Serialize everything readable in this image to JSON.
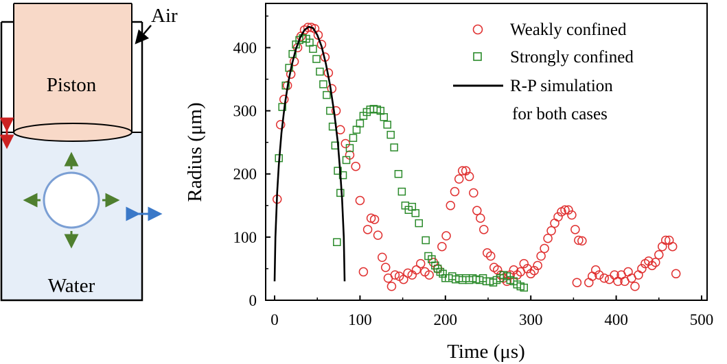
{
  "schematic": {
    "labels": {
      "air": "Air",
      "piston": "Piston",
      "water": "Water"
    },
    "colors": {
      "piston_fill": "#f8d9c8",
      "water_fill": "#e6eef8",
      "bubble_stroke": "#7b9fd4",
      "bubble_arrows": "#4f7f2f",
      "piston_arrow": "#cc2222",
      "wall_arrow": "#3a78c8"
    }
  },
  "chart_data": {
    "type": "scatter",
    "xlabel": "Time (μs)",
    "ylabel": "Radius (μm)",
    "xlim": [
      0,
      500
    ],
    "ylim": [
      0,
      470
    ],
    "xticks": [
      0,
      100,
      200,
      300,
      400,
      500
    ],
    "yticks": [
      0,
      100,
      200,
      300,
      400
    ],
    "legend_position": "top-right",
    "series": [
      {
        "name": "Weakly confined",
        "marker": "circle",
        "color": "#e03030",
        "points": [
          [
            3,
            160
          ],
          [
            7,
            278
          ],
          [
            11,
            318
          ],
          [
            15,
            340
          ],
          [
            19,
            358
          ],
          [
            23,
            378
          ],
          [
            27,
            400
          ],
          [
            31,
            418
          ],
          [
            35,
            428
          ],
          [
            39,
            432
          ],
          [
            43,
            432
          ],
          [
            47,
            430
          ],
          [
            51,
            420
          ],
          [
            55,
            405
          ],
          [
            59,
            385
          ],
          [
            63,
            360
          ],
          [
            67,
            335
          ],
          [
            72,
            300
          ],
          [
            77,
            270
          ],
          [
            83,
            248
          ],
          [
            88,
            230
          ],
          [
            95,
            212
          ],
          [
            100,
            158
          ],
          [
            104,
            45
          ],
          [
            109,
            112
          ],
          [
            113,
            130
          ],
          [
            117,
            128
          ],
          [
            121,
            103
          ],
          [
            126,
            68
          ],
          [
            130,
            52
          ],
          [
            133,
            35
          ],
          [
            137,
            22
          ],
          [
            141,
            40
          ],
          [
            146,
            38
          ],
          [
            151,
            33
          ],
          [
            156,
            43
          ],
          [
            161,
            40
          ],
          [
            166,
            48
          ],
          [
            171,
            58
          ],
          [
            176,
            45
          ],
          [
            181,
            40
          ],
          [
            186,
            60
          ],
          [
            191,
            50
          ],
          [
            196,
            85
          ],
          [
            201,
            102
          ],
          [
            206,
            150
          ],
          [
            211,
            172
          ],
          [
            216,
            192
          ],
          [
            220,
            205
          ],
          [
            224,
            205
          ],
          [
            228,
            196
          ],
          [
            233,
            170
          ],
          [
            237,
            142
          ],
          [
            241,
            130
          ],
          [
            245,
            112
          ],
          [
            249,
            75
          ],
          [
            253,
            70
          ],
          [
            257,
            52
          ],
          [
            261,
            48
          ],
          [
            265,
            40
          ],
          [
            268,
            35
          ],
          [
            272,
            30
          ],
          [
            276,
            40
          ],
          [
            280,
            48
          ],
          [
            284,
            40
          ],
          [
            288,
            45
          ],
          [
            292,
            58
          ],
          [
            296,
            50
          ],
          [
            300,
            42
          ],
          [
            304,
            47
          ],
          [
            308,
            55
          ],
          [
            312,
            70
          ],
          [
            316,
            82
          ],
          [
            320,
            98
          ],
          [
            324,
            110
          ],
          [
            328,
            122
          ],
          [
            332,
            132
          ],
          [
            336,
            140
          ],
          [
            340,
            143
          ],
          [
            344,
            143
          ],
          [
            348,
            135
          ],
          [
            352,
            112
          ],
          [
            356,
            95
          ],
          [
            360,
            94
          ],
          [
            354,
            28
          ],
          [
            368,
            28
          ],
          [
            372,
            38
          ],
          [
            376,
            48
          ],
          [
            380,
            40
          ],
          [
            386,
            35
          ],
          [
            392,
            33
          ],
          [
            398,
            40
          ],
          [
            402,
            30
          ],
          [
            406,
            40
          ],
          [
            410,
            30
          ],
          [
            414,
            45
          ],
          [
            418,
            35
          ],
          [
            422,
            22
          ],
          [
            426,
            40
          ],
          [
            430,
            50
          ],
          [
            434,
            58
          ],
          [
            438,
            62
          ],
          [
            442,
            55
          ],
          [
            446,
            60
          ],
          [
            450,
            72
          ],
          [
            454,
            85
          ],
          [
            458,
            95
          ],
          [
            462,
            95
          ],
          [
            466,
            85
          ],
          [
            470,
            42
          ]
        ]
      },
      {
        "name": "Strongly confined",
        "marker": "square",
        "color": "#2a8a2a",
        "points": [
          [
            5,
            225
          ],
          [
            9,
            306
          ],
          [
            13,
            340
          ],
          [
            17,
            368
          ],
          [
            21,
            390
          ],
          [
            25,
            405
          ],
          [
            29,
            412
          ],
          [
            33,
            415
          ],
          [
            37,
            414
          ],
          [
            41,
            408
          ],
          [
            45,
            398
          ],
          [
            49,
            382
          ],
          [
            53,
            362
          ],
          [
            57,
            342
          ],
          [
            61,
            325
          ],
          [
            65,
            300
          ],
          [
            68,
            275
          ],
          [
            71,
            245
          ],
          [
            74,
            205
          ],
          [
            77,
            170
          ],
          [
            80,
            198
          ],
          [
            84,
            222
          ],
          [
            88,
            241
          ],
          [
            92,
            257
          ],
          [
            96,
            270
          ],
          [
            100,
            280
          ],
          [
            104,
            292
          ],
          [
            108,
            298
          ],
          [
            112,
            302
          ],
          [
            116,
            303
          ],
          [
            120,
            302
          ],
          [
            124,
            300
          ],
          [
            128,
            290
          ],
          [
            132,
            278
          ],
          [
            136,
            262
          ],
          [
            140,
            242
          ],
          [
            145,
            200
          ],
          [
            149,
            172
          ],
          [
            153,
            150
          ],
          [
            157,
            143
          ],
          [
            161,
            148
          ],
          [
            165,
            138
          ],
          [
            169,
            122
          ],
          [
            73,
            92
          ],
          [
            177,
            95
          ],
          [
            180,
            70
          ],
          [
            184,
            65
          ],
          [
            188,
            55
          ],
          [
            191,
            50
          ],
          [
            194,
            45
          ],
          [
            197,
            42
          ],
          [
            200,
            35
          ],
          [
            204,
            35
          ],
          [
            208,
            38
          ],
          [
            212,
            33
          ],
          [
            216,
            35
          ],
          [
            220,
            32
          ],
          [
            224,
            35
          ],
          [
            228,
            32
          ],
          [
            232,
            35
          ],
          [
            236,
            33
          ],
          [
            240,
            32
          ],
          [
            244,
            35
          ],
          [
            248,
            30
          ],
          [
            252,
            30
          ],
          [
            256,
            28
          ],
          [
            260,
            32
          ],
          [
            264,
            35
          ],
          [
            268,
            40
          ],
          [
            272,
            38
          ],
          [
            276,
            32
          ],
          [
            280,
            30
          ],
          [
            284,
            25
          ],
          [
            288,
            22
          ],
          [
            292,
            20
          ]
        ]
      },
      {
        "name": "R-P simulation",
        "name_line2": "for both cases",
        "marker": "line",
        "color": "#000000",
        "points": [
          [
            0,
            30
          ],
          [
            1,
            100
          ],
          [
            3,
            170
          ],
          [
            5,
            215
          ],
          [
            8,
            265
          ],
          [
            12,
            310
          ],
          [
            16,
            345
          ],
          [
            20,
            372
          ],
          [
            25,
            398
          ],
          [
            30,
            416
          ],
          [
            35,
            428
          ],
          [
            40,
            433
          ],
          [
            45,
            431
          ],
          [
            50,
            420
          ],
          [
            55,
            402
          ],
          [
            60,
            375
          ],
          [
            65,
            340
          ],
          [
            70,
            295
          ],
          [
            74,
            250
          ],
          [
            77,
            200
          ],
          [
            79,
            160
          ],
          [
            81,
            100
          ],
          [
            82,
            30
          ]
        ]
      }
    ]
  }
}
